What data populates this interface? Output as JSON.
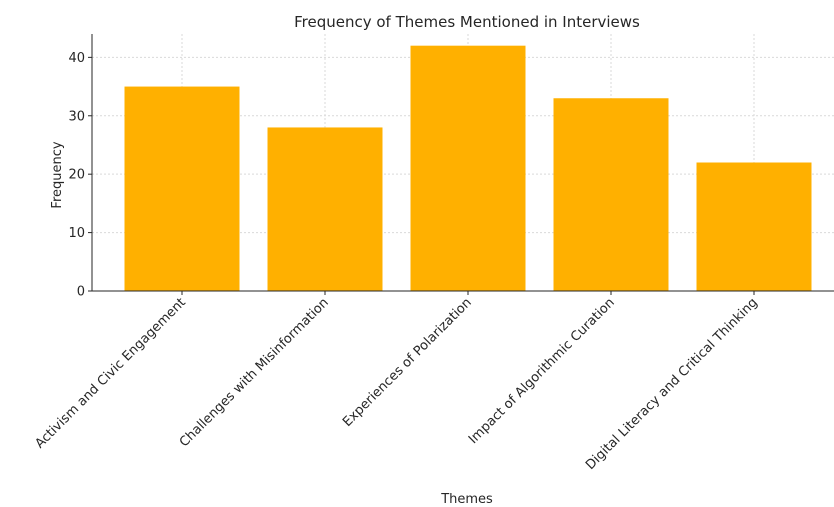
{
  "chart_data": {
    "type": "bar",
    "title": "Frequency of Themes Mentioned in Interviews",
    "xlabel": "Themes",
    "ylabel": "Frequency",
    "categories": [
      "Activism and Civic Engagement",
      "Challenges with Misinformation",
      "Experiences of Polarization",
      "Impact of Algorithmic Curation",
      "Digital Literacy and Critical Thinking"
    ],
    "values": [
      35,
      28,
      42,
      33,
      22
    ],
    "ylim": [
      0,
      44
    ],
    "yticks": [
      0,
      10,
      20,
      30,
      40
    ],
    "grid": true,
    "bar_color": "#ffb000"
  }
}
